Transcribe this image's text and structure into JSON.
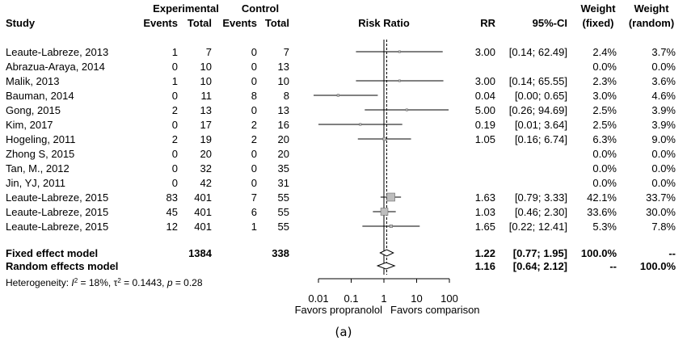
{
  "headers": {
    "study": "Study",
    "experimental": "Experimental",
    "control": "Control",
    "events": "Events",
    "total": "Total",
    "risk_ratio": "Risk Ratio",
    "rr": "RR",
    "ci": "95%-CI",
    "weight": "Weight",
    "fixed": "(fixed)",
    "random": "(random)"
  },
  "caption": "(a)",
  "chart_data": {
    "type": "forest",
    "x_scale": "log",
    "xlim": [
      0.01,
      100
    ],
    "x_ticks": [
      0.01,
      0.1,
      1,
      10,
      100
    ],
    "x_tick_labels": [
      "0.01",
      "0.1",
      "1",
      "10",
      "100"
    ],
    "favors_left": "Favors propranolol",
    "favors_right": "Favors comparison",
    "reference_line": 1,
    "studies": [
      {
        "study": "Leaute-Labreze, 2013",
        "e_events": "1",
        "e_total": "7",
        "c_events": "0",
        "c_total": "7",
        "rr": 3.0,
        "lo": 0.14,
        "hi": 62.49,
        "rr_text": "3.00",
        "ci_text": "[0.14; 62.49]",
        "w_fixed": "2.4%",
        "w_random": "3.7%"
      },
      {
        "study": "Abrazua-Araya, 2014",
        "e_events": "0",
        "e_total": "10",
        "c_events": "0",
        "c_total": "13",
        "rr": null,
        "lo": null,
        "hi": null,
        "rr_text": "",
        "ci_text": "",
        "w_fixed": "0.0%",
        "w_random": "0.0%"
      },
      {
        "study": "Malik, 2013",
        "e_events": "1",
        "e_total": "10",
        "c_events": "0",
        "c_total": "10",
        "rr": 3.0,
        "lo": 0.14,
        "hi": 65.55,
        "rr_text": "3.00",
        "ci_text": "[0.14; 65.55]",
        "w_fixed": "2.3%",
        "w_random": "3.6%"
      },
      {
        "study": "Bauman, 2014",
        "e_events": "0",
        "e_total": "11",
        "c_events": "8",
        "c_total": "8",
        "rr": 0.04,
        "lo": 0.0,
        "hi": 0.65,
        "rr_text": "0.04",
        "ci_text": "[0.00; 0.65]",
        "w_fixed": "3.0%",
        "w_random": "4.6%"
      },
      {
        "study": "Gong, 2015",
        "e_events": "2",
        "e_total": "13",
        "c_events": "0",
        "c_total": "13",
        "rr": 5.0,
        "lo": 0.26,
        "hi": 94.69,
        "rr_text": "5.00",
        "ci_text": "[0.26; 94.69]",
        "w_fixed": "2.5%",
        "w_random": "3.9%"
      },
      {
        "study": "Kim, 2017",
        "e_events": "0",
        "e_total": "17",
        "c_events": "2",
        "c_total": "16",
        "rr": 0.19,
        "lo": 0.01,
        "hi": 3.64,
        "rr_text": "0.19",
        "ci_text": "[0.01; 3.64]",
        "w_fixed": "2.5%",
        "w_random": "3.9%"
      },
      {
        "study": "Hogeling, 2011",
        "e_events": "2",
        "e_total": "19",
        "c_events": "2",
        "c_total": "20",
        "rr": 1.05,
        "lo": 0.16,
        "hi": 6.74,
        "rr_text": "1.05",
        "ci_text": "[0.16; 6.74]",
        "w_fixed": "6.3%",
        "w_random": "9.0%"
      },
      {
        "study": "Zhong S, 2015",
        "e_events": "0",
        "e_total": "20",
        "c_events": "0",
        "c_total": "20",
        "rr": null,
        "lo": null,
        "hi": null,
        "rr_text": "",
        "ci_text": "",
        "w_fixed": "0.0%",
        "w_random": "0.0%"
      },
      {
        "study": "Tan, M., 2012",
        "e_events": "0",
        "e_total": "32",
        "c_events": "0",
        "c_total": "35",
        "rr": null,
        "lo": null,
        "hi": null,
        "rr_text": "",
        "ci_text": "",
        "w_fixed": "0.0%",
        "w_random": "0.0%"
      },
      {
        "study": "Jin, YJ, 2011",
        "e_events": "0",
        "e_total": "42",
        "c_events": "0",
        "c_total": "31",
        "rr": null,
        "lo": null,
        "hi": null,
        "rr_text": "",
        "ci_text": "",
        "w_fixed": "0.0%",
        "w_random": "0.0%"
      },
      {
        "study": "Leaute-Labreze, 2015",
        "e_events": "83",
        "e_total": "401",
        "c_events": "7",
        "c_total": "55",
        "rr": 1.63,
        "lo": 0.79,
        "hi": 3.33,
        "rr_text": "1.63",
        "ci_text": "[0.79; 3.33]",
        "w_fixed": "42.1%",
        "w_random": "33.7%"
      },
      {
        "study": "Leaute-Labreze, 2015",
        "e_events": "45",
        "e_total": "401",
        "c_events": "6",
        "c_total": "55",
        "rr": 1.03,
        "lo": 0.46,
        "hi": 2.3,
        "rr_text": "1.03",
        "ci_text": "[0.46; 2.30]",
        "w_fixed": "33.6%",
        "w_random": "30.0%"
      },
      {
        "study": "Leaute-Labreze, 2015",
        "e_events": "12",
        "e_total": "401",
        "c_events": "1",
        "c_total": "55",
        "rr": 1.65,
        "lo": 0.22,
        "hi": 12.41,
        "rr_text": "1.65",
        "ci_text": "[0.22; 12.41]",
        "w_fixed": "5.3%",
        "w_random": "7.8%"
      }
    ],
    "fixed_model": {
      "label": "Fixed effect model",
      "e_total": "1384",
      "c_total": "338",
      "rr": 1.22,
      "lo": 0.77,
      "hi": 1.95,
      "rr_text": "1.22",
      "ci_text": "[0.77; 1.95]",
      "w_fixed": "100.0%",
      "w_random": "--"
    },
    "random_model": {
      "label": "Random effects model",
      "rr": 1.16,
      "lo": 0.64,
      "hi": 2.12,
      "rr_text": "1.16",
      "ci_text": "[0.64; 2.12]",
      "w_fixed": "--",
      "w_random": "100.0%"
    },
    "heterogeneity": {
      "prefix": "Heterogeneity: ",
      "i2_symbol": "I",
      "i2_value": " = 18%, ",
      "tau_symbol": "τ",
      "tau_value": " = 0.1443, ",
      "p_symbol": "p",
      "p_value": " = 0.28"
    }
  }
}
